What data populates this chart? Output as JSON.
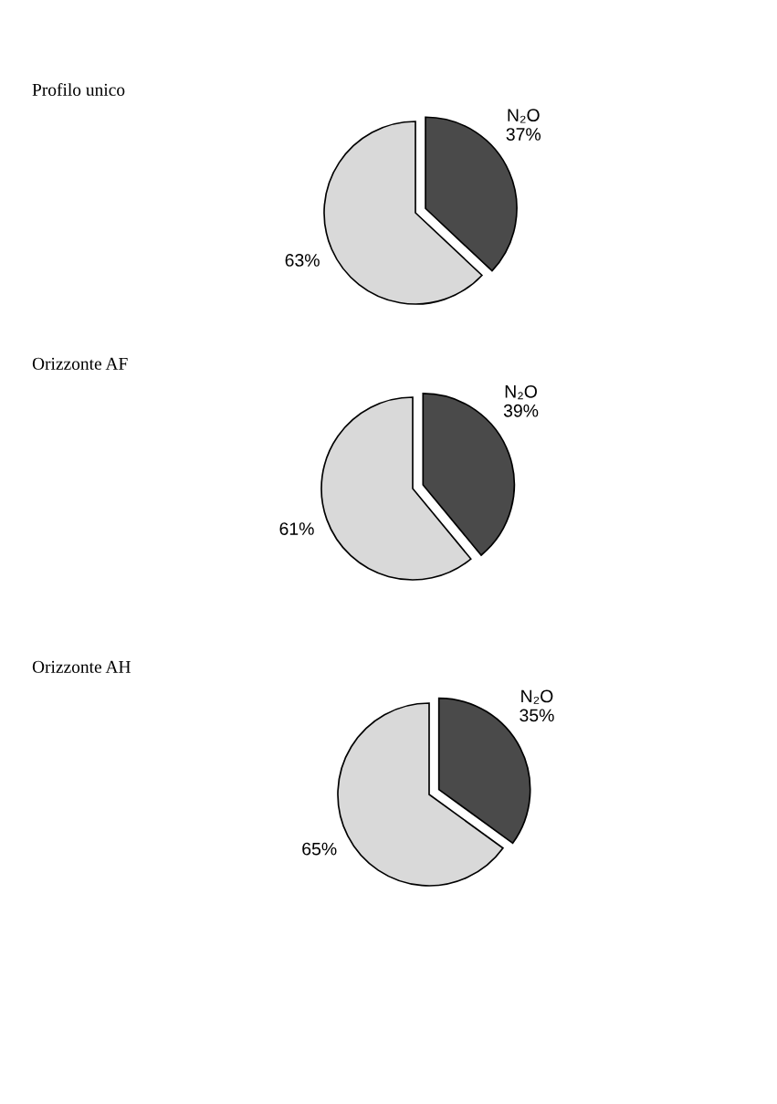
{
  "chart_data": [
    {
      "type": "pie",
      "title": "Profilo unico",
      "categories": [
        "N₂O",
        null
      ],
      "values": [
        37,
        63
      ],
      "colors": [
        "#4a4a4a",
        "#d9d9d9"
      ],
      "value_labels": [
        "37%",
        "63%"
      ]
    },
    {
      "type": "pie",
      "title": "Orizzonte AF",
      "categories": [
        "N₂O",
        null
      ],
      "values": [
        39,
        61
      ],
      "colors": [
        "#4a4a4a",
        "#d9d9d9"
      ],
      "value_labels": [
        "39%",
        "61%"
      ]
    },
    {
      "type": "pie",
      "title": "Orizzonte AH",
      "categories": [
        "N₂O",
        null
      ],
      "values": [
        35,
        65
      ],
      "colors": [
        "#4a4a4a",
        "#d9d9d9"
      ],
      "value_labels": [
        "35%",
        "65%"
      ]
    }
  ]
}
